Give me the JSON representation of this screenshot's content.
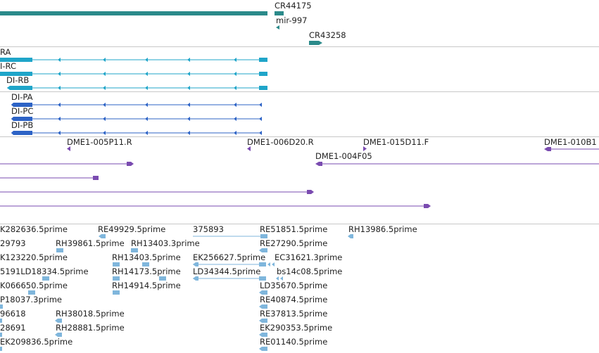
{
  "app": {
    "title": ""
  },
  "colors": {
    "ncrna": "#2b8a8a",
    "transcript_cyan": "#1fa5c9",
    "transcript_blue": "#2d63c6",
    "probe_purple": "#7a4bb0",
    "est_lightblue": "#7fb6dc",
    "divider": "#c8c8c8"
  },
  "tracks": {
    "ncrna": {
      "items": [
        {
          "label": "CR44175"
        },
        {
          "label": "mir-997"
        },
        {
          "label": "CR43258"
        }
      ]
    },
    "transcripts_cyan": {
      "items": [
        {
          "label": "RA"
        },
        {
          "label": "I-RC"
        },
        {
          "label": "DI-RB"
        }
      ]
    },
    "transcripts_blue": {
      "items": [
        {
          "label": "DI-PA"
        },
        {
          "label": "DI-PC"
        },
        {
          "label": "DI-PB"
        }
      ]
    },
    "probes": {
      "items": [
        {
          "label": "DME1-005P11.R"
        },
        {
          "label": "DME1-006D20.R"
        },
        {
          "label": "DME1-015D11.F"
        },
        {
          "label": "DME1-010B1"
        },
        {
          "label": "DME1-004F05"
        }
      ]
    },
    "ests": {
      "items": [
        {
          "label": "K282636.5prime"
        },
        {
          "label": "RE49929.5prime"
        },
        {
          "label": "375893"
        },
        {
          "label": "RE51851.5prime"
        },
        {
          "label": "RH13986.5prime"
        },
        {
          "label": "29793"
        },
        {
          "label": "RH39861.5prime"
        },
        {
          "label": "RH13403.3prime"
        },
        {
          "label": "RE27290.5prime"
        },
        {
          "label": "K123220.5prime"
        },
        {
          "label": "RH13403.5prime"
        },
        {
          "label": "EK256627.5prime"
        },
        {
          "label": "EC31621.3prime"
        },
        {
          "label": "5191LD18334.5prime"
        },
        {
          "label": "RH14173.5prime"
        },
        {
          "label": "LD34344.5prime"
        },
        {
          "label": "bs14c08.5prime"
        },
        {
          "label": "K066650.5prime"
        },
        {
          "label": "RH14914.5prime"
        },
        {
          "label": "LD35670.5prime"
        },
        {
          "label": "P18037.3prime"
        },
        {
          "label": "RE40874.5prime"
        },
        {
          "label": "96618"
        },
        {
          "label": "RH38018.5prime"
        },
        {
          "label": "RE37813.5prime"
        },
        {
          "label": "28691"
        },
        {
          "label": "RH28881.5prime"
        },
        {
          "label": "EK290353.5prime"
        },
        {
          "label": "EK209836.5prime"
        },
        {
          "label": "RE01140.5prime"
        }
      ]
    }
  }
}
